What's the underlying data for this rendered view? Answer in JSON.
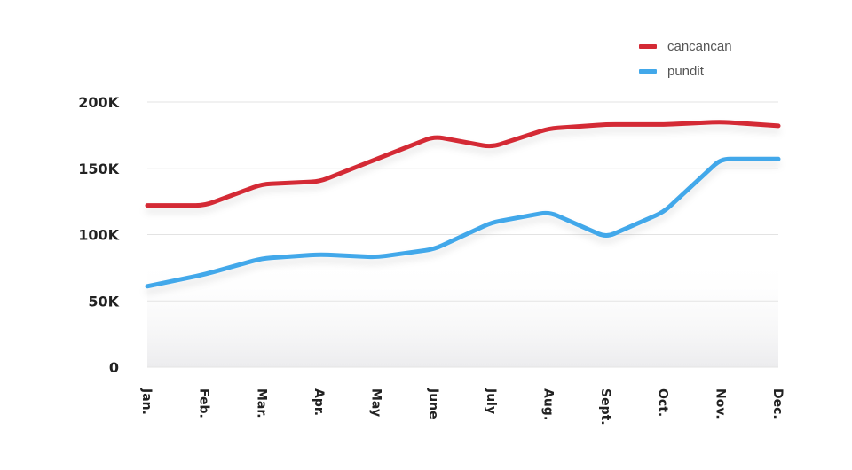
{
  "chart_data": {
    "type": "line",
    "title": "",
    "xlabel": "",
    "ylabel": "",
    "categories": [
      "Jan.",
      "Feb.",
      "Mar.",
      "Apr.",
      "May",
      "June",
      "July",
      "Aug.",
      "Sept.",
      "Oct.",
      "Nov.",
      "Dec."
    ],
    "ylim": [
      0,
      200000
    ],
    "yticks": [
      {
        "value": 0,
        "label": "0"
      },
      {
        "value": 50000,
        "label": "50K"
      },
      {
        "value": 100000,
        "label": "100K"
      },
      {
        "value": 150000,
        "label": "150K"
      },
      {
        "value": 200000,
        "label": "200K"
      }
    ],
    "grid": true,
    "legend_position": "top-right",
    "series": [
      {
        "name": "cancancan",
        "color": "#d42a35",
        "values": [
          122000,
          122000,
          138000,
          140000,
          157000,
          174000,
          166000,
          180000,
          183000,
          183000,
          185000,
          182000
        ]
      },
      {
        "name": "pundit",
        "color": "#42a8ea",
        "values": [
          61000,
          70000,
          82000,
          85000,
          83000,
          89000,
          109000,
          117000,
          98000,
          117000,
          157000,
          157000
        ]
      }
    ]
  }
}
